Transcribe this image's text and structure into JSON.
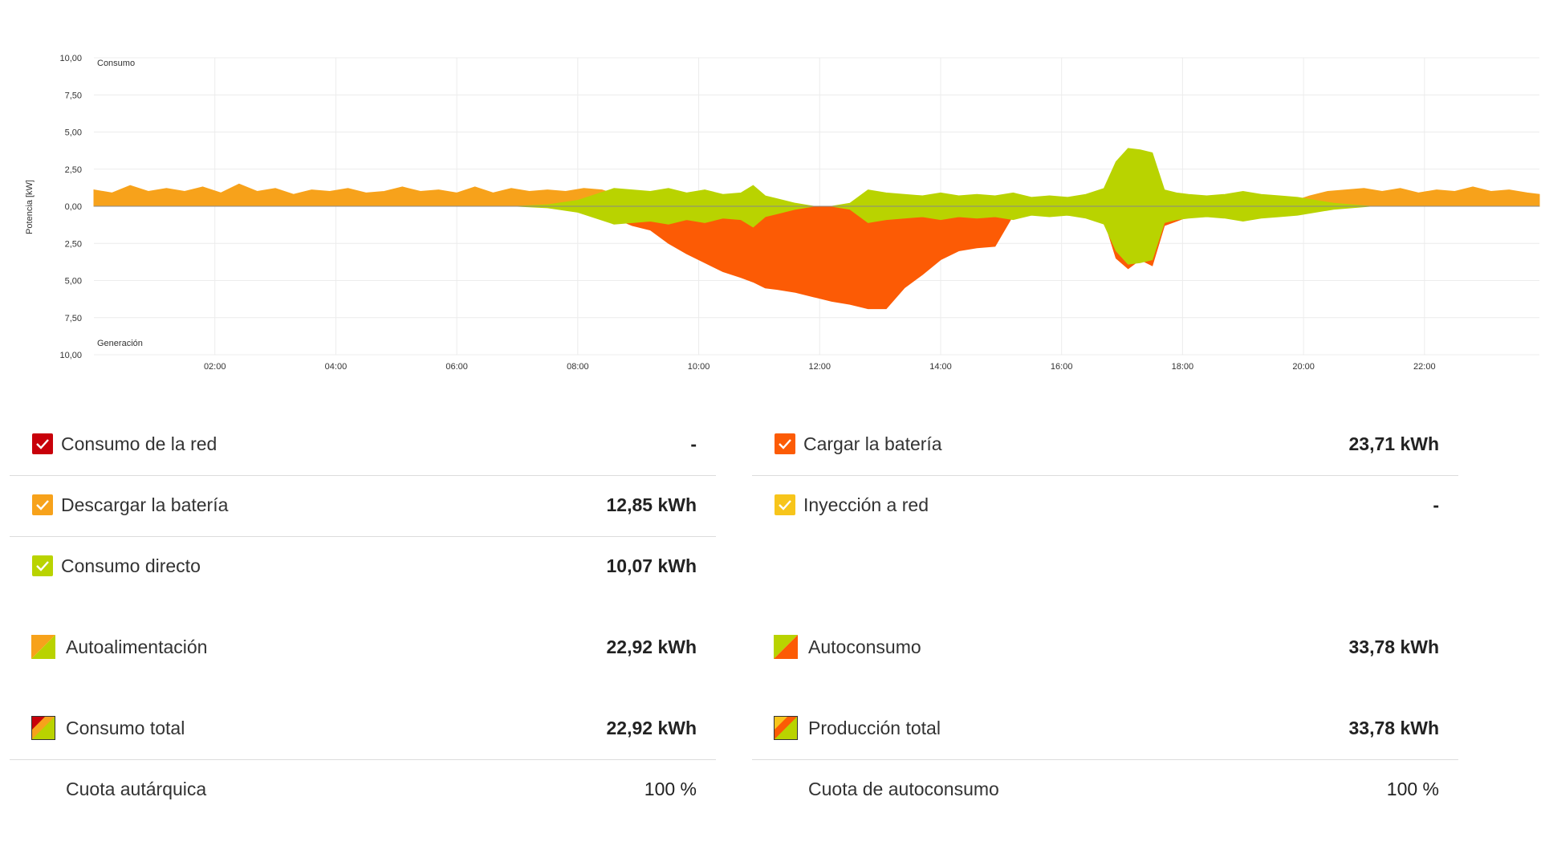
{
  "chart_data": {
    "type": "area",
    "ylabel": "Potencia [kW]",
    "top_label": "Consumo",
    "bottom_label": "Generación",
    "y_ticks": [
      "10,00",
      "7,50",
      "5,00",
      "2,50",
      "0,00",
      "2,50",
      "5,00",
      "7,50",
      "10,00"
    ],
    "y_tick_values": [
      10,
      7.5,
      5,
      2.5,
      0,
      -2.5,
      -5,
      -7.5,
      -10
    ],
    "ylim": [
      -10,
      10
    ],
    "xlim": [
      0.0,
      23.9
    ],
    "x_ticks": [
      "02:00",
      "04:00",
      "06:00",
      "08:00",
      "10:00",
      "12:00",
      "14:00",
      "16:00",
      "18:00",
      "20:00",
      "22:00"
    ],
    "x_tick_values": [
      2,
      4,
      6,
      8,
      10,
      12,
      14,
      16,
      18,
      20,
      22
    ],
    "grid": true,
    "series": [
      {
        "name": "Descargar la batería",
        "color": "#f7a21b",
        "side": "consumption",
        "x": [
          0,
          0.3,
          0.6,
          0.9,
          1.2,
          1.5,
          1.8,
          2.1,
          2.4,
          2.7,
          3,
          3.3,
          3.6,
          3.9,
          4.2,
          4.5,
          4.8,
          5.1,
          5.4,
          5.7,
          6,
          6.3,
          6.6,
          6.9,
          7.2,
          7.5,
          7.8,
          8.1,
          8.4,
          8.7,
          9,
          9.3,
          9.6,
          9.9,
          10.2,
          10.5,
          10.8,
          11.1,
          11.4,
          11.7,
          12,
          12.3,
          12.6,
          12.9,
          13.2,
          13.5,
          13.8,
          14.1,
          14.4,
          14.7,
          15,
          15.3,
          15.6,
          15.9,
          16.2,
          16.5,
          16.8,
          17.1,
          17.4,
          17.7,
          18,
          18.3,
          18.6,
          18.9,
          19.2,
          19.5,
          19.8,
          20.1,
          20.4,
          20.7,
          21,
          21.3,
          21.6,
          21.9,
          22.2,
          22.5,
          22.8,
          23.1,
          23.4,
          23.7,
          23.9
        ],
        "y": [
          1.1,
          0.9,
          1.4,
          1.0,
          1.2,
          1.0,
          1.3,
          0.9,
          1.5,
          1.0,
          1.2,
          0.8,
          1.1,
          1.0,
          1.2,
          0.9,
          1.0,
          1.3,
          1.0,
          1.1,
          0.9,
          1.3,
          0.9,
          1.2,
          1.0,
          1.1,
          1.0,
          1.2,
          1.1,
          0.7,
          0.3,
          0.1,
          0,
          0,
          0,
          0,
          0,
          0,
          0,
          0,
          0,
          0,
          0,
          0,
          0,
          0,
          0,
          0,
          0,
          0,
          0,
          0,
          0,
          0,
          0,
          0,
          0,
          0,
          0,
          0,
          0,
          0,
          0,
          0,
          0,
          0,
          0.3,
          0.7,
          1.0,
          1.1,
          1.2,
          1.0,
          1.2,
          0.9,
          1.1,
          1.0,
          1.3,
          1.0,
          1.1,
          0.9,
          0.8
        ]
      },
      {
        "name": "Consumo directo",
        "color": "#b9d300",
        "side": "consumption",
        "x": [
          7,
          7.5,
          8,
          8.3,
          8.6,
          8.9,
          9.2,
          9.5,
          9.8,
          10.1,
          10.4,
          10.7,
          10.9,
          11.1,
          11.3,
          11.6,
          11.9,
          12.2,
          12.5,
          12.8,
          13.1,
          13.4,
          13.7,
          14,
          14.3,
          14.6,
          14.9,
          15.2,
          15.5,
          15.8,
          16.1,
          16.4,
          16.7,
          16.9,
          17.1,
          17.3,
          17.5,
          17.7,
          17.9,
          18.1,
          18.4,
          18.7,
          19,
          19.3,
          19.6,
          19.9,
          20.2,
          20.5,
          20.8,
          21.1
        ],
        "y": [
          0,
          0.1,
          0.4,
          0.8,
          1.2,
          1.1,
          1.0,
          1.2,
          0.9,
          1.1,
          0.8,
          0.9,
          1.4,
          0.7,
          0.5,
          0.2,
          0,
          0,
          0.2,
          1.1,
          0.9,
          0.8,
          0.7,
          0.9,
          0.7,
          0.8,
          0.7,
          0.9,
          0.6,
          0.7,
          0.6,
          0.8,
          1.2,
          3.0,
          3.9,
          3.8,
          3.6,
          1.1,
          0.9,
          0.8,
          0.7,
          0.8,
          1.0,
          0.8,
          0.7,
          0.6,
          0.4,
          0.2,
          0.1,
          0
        ]
      },
      {
        "name": "Cargar la batería",
        "color": "#fc5b05",
        "side": "generation",
        "x": [
          8,
          8.3,
          8.6,
          8.9,
          9.2,
          9.5,
          9.8,
          10.1,
          10.4,
          10.7,
          10.9,
          11.1,
          11.3,
          11.6,
          11.9,
          12.2,
          12.5,
          12.8,
          13.1,
          13.4,
          13.7,
          14,
          14.3,
          14.6,
          14.9,
          15.2,
          15.5,
          15.8,
          16.1,
          16.4,
          16.7,
          16.9,
          17.1,
          17.3,
          17.5,
          17.7,
          17.9,
          18.1,
          18.4,
          18.7,
          19,
          19.3,
          19.6
        ],
        "y": [
          0,
          -0.3,
          -0.8,
          -1.3,
          -1.6,
          -2.5,
          -3.2,
          -3.8,
          -4.4,
          -4.8,
          -5.1,
          -5.5,
          -5.6,
          -5.8,
          -6.1,
          -6.4,
          -6.6,
          -6.9,
          -6.9,
          -5.5,
          -4.6,
          -3.6,
          -3.0,
          -2.8,
          -2.7,
          -0.6,
          -0.5,
          -0.5,
          -0.6,
          -0.7,
          -0.9,
          -3.5,
          -4.2,
          -3.6,
          -4.0,
          -1.3,
          -1.0,
          -0.7,
          -0.6,
          -0.5,
          -0.4,
          -0.3,
          0
        ]
      },
      {
        "name": "Consumo directo (generación)",
        "color": "#b9d300",
        "side": "generation",
        "x": [
          7,
          7.5,
          8,
          8.3,
          8.6,
          8.9,
          9.2,
          9.5,
          9.8,
          10.1,
          10.4,
          10.7,
          10.9,
          11.1,
          11.3,
          11.6,
          11.9,
          12.2,
          12.5,
          12.8,
          13.1,
          13.4,
          13.7,
          14,
          14.3,
          14.6,
          14.9,
          15.2,
          15.5,
          15.8,
          16.1,
          16.4,
          16.7,
          16.9,
          17.1,
          17.3,
          17.5,
          17.7,
          17.9,
          18.1,
          18.4,
          18.7,
          19,
          19.3,
          19.6,
          19.9,
          20.2,
          20.5,
          20.8,
          21.1
        ],
        "y": [
          0,
          -0.1,
          -0.4,
          -0.8,
          -1.2,
          -1.1,
          -1.0,
          -1.2,
          -0.9,
          -1.1,
          -0.8,
          -0.9,
          -1.4,
          -0.7,
          -0.5,
          -0.2,
          0,
          0,
          -0.2,
          -1.1,
          -0.9,
          -0.8,
          -0.7,
          -0.9,
          -0.7,
          -0.8,
          -0.7,
          -0.9,
          -0.6,
          -0.7,
          -0.6,
          -0.8,
          -1.2,
          -3.0,
          -3.9,
          -3.8,
          -3.6,
          -1.1,
          -0.9,
          -0.8,
          -0.7,
          -0.8,
          -1.0,
          -0.8,
          -0.7,
          -0.6,
          -0.4,
          -0.2,
          -0.1,
          0
        ]
      }
    ]
  },
  "legend": {
    "left": [
      {
        "label": "Consumo de la red",
        "value": "-",
        "icon": "check-box-red",
        "color": "#c8000a"
      },
      {
        "label": "Descargar la batería",
        "value": "12,85 kWh",
        "icon": "check-box-orange",
        "color": "#f7a21b"
      },
      {
        "label": "Consumo directo",
        "value": "10,07 kWh",
        "icon": "check-box-green",
        "color": "#b9d300"
      },
      {
        "label": "Autoalimentación",
        "value": "22,92 kWh",
        "icon": "combo-orange-green-icon"
      },
      {
        "label": "Consumo total",
        "value": "22,92 kWh",
        "icon": "combo-red-orange-green-icon"
      },
      {
        "label": "Cuota autárquica",
        "value": "100 %"
      }
    ],
    "right": [
      {
        "label": "Cargar la batería",
        "value": "23,71 kWh",
        "icon": "check-box-dark-orange",
        "color": "#fc5b05"
      },
      {
        "label": "Inyección a red",
        "value": "-",
        "icon": "check-box-yellow",
        "color": "#f7c51b"
      },
      {
        "label": "Autoconsumo",
        "value": "33,78 kWh",
        "icon": "combo-green-orange-icon"
      },
      {
        "label": "Producción total",
        "value": "33,78 kWh",
        "icon": "combo-yellow-orange-green-icon"
      },
      {
        "label": "Cuota de autoconsumo",
        "value": "100 %"
      }
    ]
  }
}
